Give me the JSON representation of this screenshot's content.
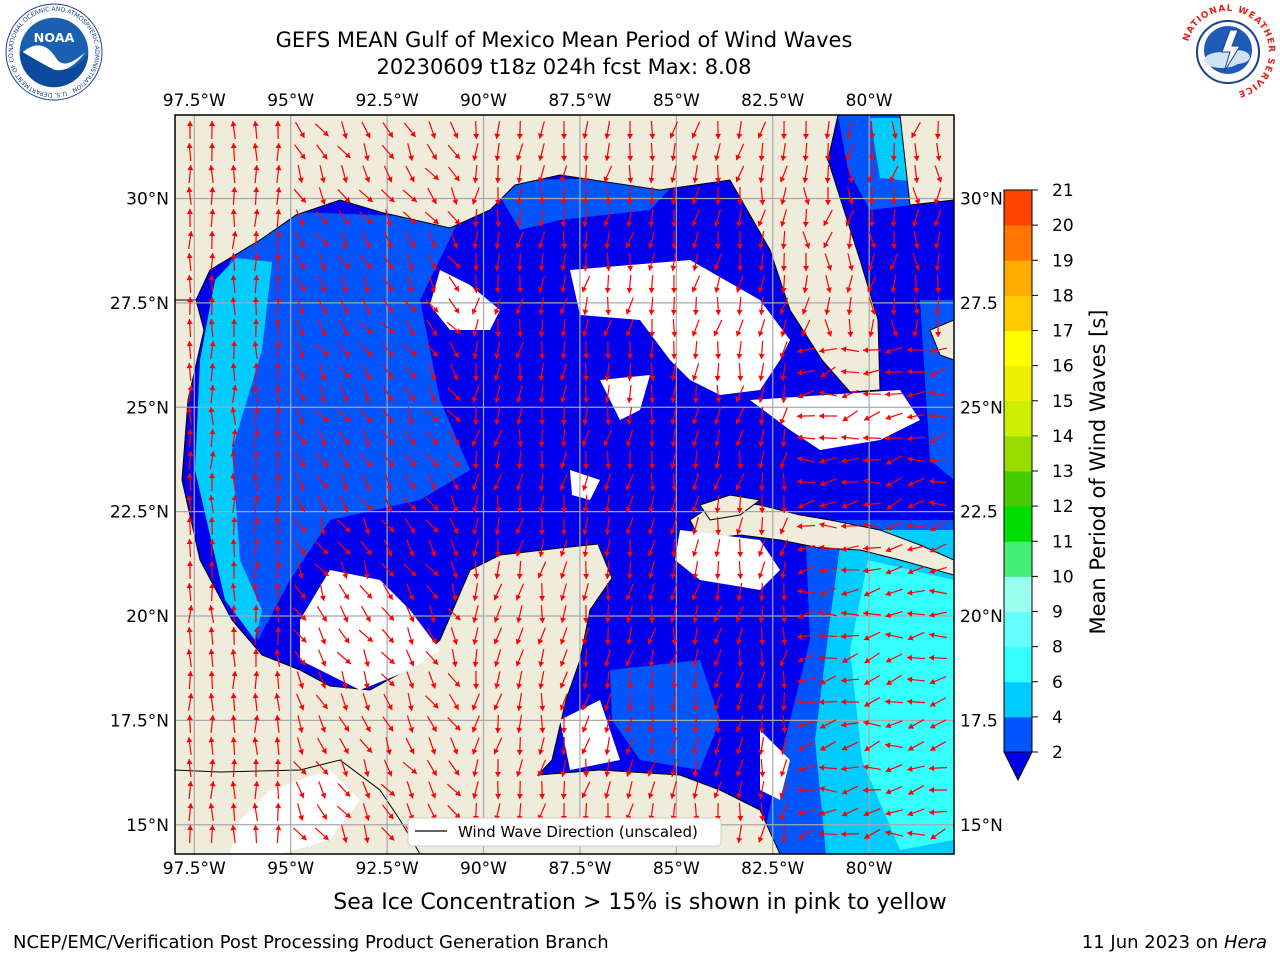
{
  "header": {
    "title_line1": "GEFS MEAN Gulf of Mexico Mean Period of Wind Waves",
    "title_line2": "20230609 t18z 024h fcst   Max: 8.08"
  },
  "map": {
    "lon_ticks": [
      "97.5°W",
      "95°W",
      "92.5°W",
      "90°W",
      "87.5°W",
      "85°W",
      "82.5°W",
      "80°W"
    ],
    "lat_ticks_left": [
      "30°N",
      "27.5°N",
      "25°N",
      "22.5°N",
      "20°N",
      "17.5°N",
      "15°N"
    ],
    "lat_ticks_right": [
      "30°N",
      "27.5",
      "25°N",
      "22.5",
      "20°N",
      "17.5",
      "15°N"
    ],
    "lon_range": [
      -98,
      -77.8
    ],
    "lat_range": [
      14.3,
      32
    ],
    "legend_label": "Wind Wave Direction (unscaled)",
    "land_color": "#efecdc",
    "arrow_color": "#ff0000"
  },
  "colorbar": {
    "label": "Mean Period of Wind Waves [s]",
    "tick_labels": [
      "2",
      "4",
      "6",
      "8",
      "9",
      "10",
      "11",
      "12",
      "13",
      "14",
      "15",
      "16",
      "17",
      "18",
      "19",
      "20",
      "21"
    ],
    "colors": [
      "#0055ff",
      "#00ccff",
      "#33ffff",
      "#66ffff",
      "#99ffee",
      "#44ee77",
      "#00dd00",
      "#44cc00",
      "#99dd00",
      "#ccee00",
      "#eeee00",
      "#ffff00",
      "#ffcc00",
      "#ffaa00",
      "#ff7700",
      "#ff4400",
      "#ff2200",
      "#ff0000"
    ],
    "under_color": "#0000ee"
  },
  "footer": {
    "subtitle": "Sea Ice Concentration > 15% is shown in pink to yellow",
    "credit": "NCEP/EMC/Verification Post Processing Product Generation Branch",
    "date_text": "11 Jun 2023 on ",
    "host": "Hera"
  },
  "logos": {
    "noaa_text": "NOAA",
    "noaa_ring": "NATIONAL OCEANIC AND ATMOSPHERIC ADMINISTRATION · U.S. DEPARTMENT OF COMMERCE",
    "nws_ring": "NATIONAL WEATHER SERVICE"
  }
}
